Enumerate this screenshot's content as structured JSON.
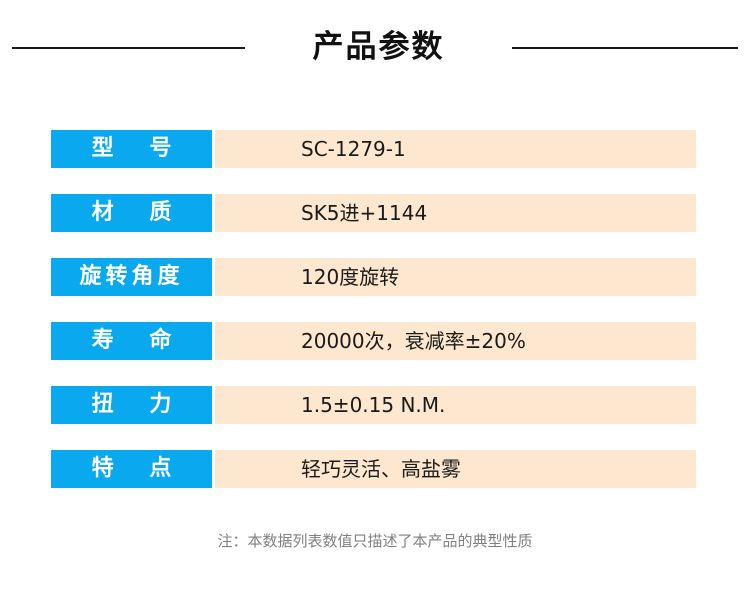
{
  "header": {
    "title": "产品参数"
  },
  "specs": [
    {
      "label": "型 号",
      "value": "SC-1279-1"
    },
    {
      "label": "材 质",
      "value": "SK5进+1144"
    },
    {
      "label": "旋转角度",
      "value": "120度旋转"
    },
    {
      "label": "寿 命",
      "value": "20000次，衰减率±20%"
    },
    {
      "label": "扭 力",
      "value": "1.5±0.15 N.M."
    },
    {
      "label": "特 点",
      "value": "轻巧灵活、高盐雾"
    }
  ],
  "note": "注：本数据列表数值只描述了本产品的典型性质",
  "colors": {
    "label_bg": "#0aa8ee",
    "value_bg": "#fde8cf"
  }
}
